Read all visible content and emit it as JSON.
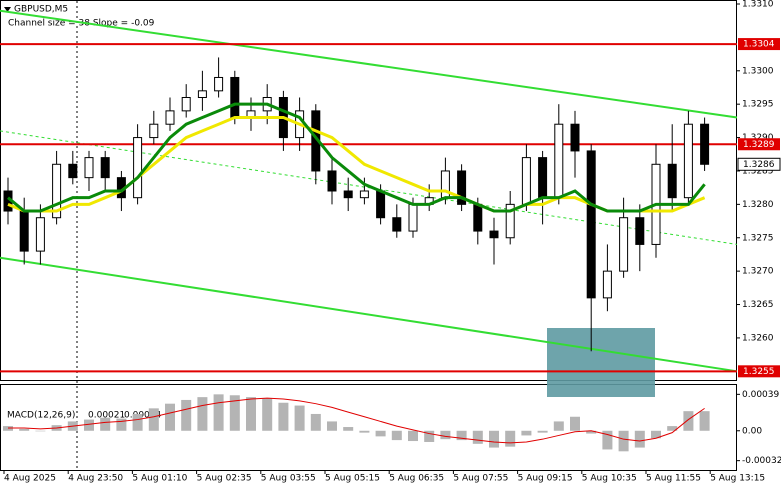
{
  "chart_data": [
    {
      "type": "candlestick",
      "title": "GBPUSD,M5",
      "subtitle": "Channel size = 38 Slope = -0.09",
      "open": [
        1.3282,
        1.3279,
        1.3273,
        1.3278,
        1.3286,
        1.3284,
        1.3287,
        1.3284,
        1.3281,
        1.329,
        1.3292,
        1.3294,
        1.3296,
        1.3297,
        1.3299,
        1.3293,
        1.3294,
        1.3296,
        1.329,
        1.3294,
        1.3285,
        1.3282,
        1.3281,
        1.3282,
        1.3278,
        1.3276,
        1.328,
        1.3281,
        1.3285,
        1.328,
        1.3276,
        1.3275,
        1.328,
        1.3287,
        1.3281,
        1.3292,
        1.3288,
        1.3266,
        1.327,
        1.3278,
        1.3274,
        1.3286,
        1.3281,
        1.3292
      ],
      "high": [
        1.3284,
        1.3281,
        1.328,
        1.3288,
        1.3288,
        1.3288,
        1.3288,
        1.3285,
        1.3292,
        1.3294,
        1.3296,
        1.3298,
        1.33,
        1.3302,
        1.33,
        1.3296,
        1.3298,
        1.3297,
        1.3296,
        1.3295,
        1.3287,
        1.3284,
        1.3284,
        1.3283,
        1.328,
        1.3281,
        1.3283,
        1.3287,
        1.3286,
        1.3281,
        1.3278,
        1.3282,
        1.3289,
        1.3288,
        1.3295,
        1.3294,
        1.3289,
        1.3274,
        1.3281,
        1.328,
        1.3289,
        1.3292,
        1.3294,
        1.3293
      ],
      "low": [
        1.3277,
        1.3271,
        1.3271,
        1.3277,
        1.3283,
        1.3282,
        1.3282,
        1.3279,
        1.328,
        1.3289,
        1.3291,
        1.3293,
        1.3294,
        1.3296,
        1.3292,
        1.3291,
        1.3292,
        1.3288,
        1.3288,
        1.3283,
        1.328,
        1.3279,
        1.328,
        1.3277,
        1.3275,
        1.3275,
        1.3279,
        1.328,
        1.3279,
        1.3274,
        1.3271,
        1.3274,
        1.3279,
        1.3277,
        1.328,
        1.3284,
        1.3258,
        1.3264,
        1.3269,
        1.327,
        1.3272,
        1.3279,
        1.328,
        1.3285
      ],
      "close": [
        1.3279,
        1.3273,
        1.3278,
        1.3286,
        1.3284,
        1.3287,
        1.3284,
        1.3281,
        1.329,
        1.3292,
        1.3294,
        1.3296,
        1.3297,
        1.3299,
        1.3293,
        1.3294,
        1.3296,
        1.329,
        1.3294,
        1.3285,
        1.3282,
        1.3281,
        1.3282,
        1.3278,
        1.3276,
        1.328,
        1.3281,
        1.3285,
        1.328,
        1.3276,
        1.3275,
        1.328,
        1.3287,
        1.3281,
        1.3292,
        1.3288,
        1.3266,
        1.327,
        1.3278,
        1.3274,
        1.3286,
        1.3281,
        1.3292,
        1.3286
      ],
      "series": [
        {
          "color": "#f0e800",
          "values": [
            1.328,
            1.3279,
            1.3279,
            1.3279,
            1.328,
            1.328,
            1.3281,
            1.3282,
            1.3284,
            1.3286,
            1.3288,
            1.329,
            1.3291,
            1.3292,
            1.3293,
            1.3293,
            1.3293,
            1.3293,
            1.3292,
            1.3291,
            1.329,
            1.3288,
            1.3286,
            1.3285,
            1.3284,
            1.3283,
            1.3282,
            1.3282,
            1.3281,
            1.328,
            1.3279,
            1.3279,
            1.328,
            1.328,
            1.3281,
            1.3281,
            1.328,
            1.3279,
            1.3279,
            1.3279,
            1.3279,
            1.3279,
            1.328,
            1.3281
          ]
        },
        {
          "color": "#0a8a0a",
          "values": [
            1.3281,
            1.3279,
            1.3279,
            1.328,
            1.3281,
            1.3281,
            1.3282,
            1.3282,
            1.3284,
            1.3287,
            1.329,
            1.3292,
            1.3293,
            1.3294,
            1.3295,
            1.3295,
            1.3295,
            1.3294,
            1.3293,
            1.329,
            1.3287,
            1.3285,
            1.3283,
            1.3282,
            1.3281,
            1.328,
            1.328,
            1.3281,
            1.3281,
            1.328,
            1.3279,
            1.3279,
            1.328,
            1.3281,
            1.3281,
            1.3282,
            1.328,
            1.3279,
            1.3279,
            1.3279,
            1.328,
            1.328,
            1.328,
            1.3283
          ]
        }
      ],
      "channel": {
        "color": "#33dd33",
        "upper": [
          1.3309,
          1.3293
        ],
        "middle": [
          1.3291,
          1.3274
        ],
        "lower": [
          1.3272,
          1.3255
        ]
      },
      "levels": [
        1.3304,
        1.3289,
        1.3255
      ],
      "level_color": "#e00000",
      "ylim": [
        1.32537,
        1.33106
      ],
      "yticks": [
        {
          "value": 1.331,
          "label": "1.3310"
        },
        {
          "value": 1.33,
          "label": "1.3300"
        },
        1.3295,
        {
          "value": 1.329,
          "label": "1.3290"
        },
        1.3285,
        {
          "value": 1.328,
          "label": "1.3280"
        },
        1.3275,
        {
          "value": 1.327,
          "label": "1.3270"
        },
        1.3265,
        {
          "value": 1.326,
          "label": "1.3260"
        }
      ],
      "xtick_labels": [
        "4 Aug 2025",
        "4 Aug 23:50",
        "5 Aug 01:10",
        "5 Aug 02:35",
        "5 Aug 03:55",
        "5 Aug 05:15",
        "5 Aug 06:35",
        "5 Aug 07:55",
        "5 Aug 09:15",
        "5 Aug 10:35",
        "5 Aug 11:55",
        "5 Aug 13:15"
      ]
    },
    {
      "type": "macd",
      "title": "MACD(12,26,9)",
      "series": [
        {
          "color": "#b4b4b4",
          "values": [
            5e-05,
            2e-05,
            0.0,
            6e-05,
            0.0001,
            0.00012,
            0.00014,
            0.00013,
            0.00018,
            0.00024,
            0.00029,
            0.00033,
            0.00036,
            0.00039,
            0.00038,
            0.00036,
            0.00035,
            0.0003,
            0.00027,
            0.00018,
            0.0001,
            4e-05,
            -2e-05,
            -6e-05,
            -0.0001,
            -0.00011,
            -0.00012,
            -9e-05,
            -0.0001,
            -0.00014,
            -0.00018,
            -0.00017,
            -5e-05,
            -2e-05,
            0.0001,
            0.00015,
            -3e-05,
            -0.0002,
            -0.00022,
            -0.00018,
            -8e-05,
            5e-05,
            0.00021,
            0.00021
          ]
        },
        {
          "color": "#e00000",
          "values": [
            3e-05,
            3e-05,
            2e-05,
            3e-05,
            5e-05,
            7e-05,
            9e-05,
            0.0001,
            0.00012,
            0.00015,
            0.00019,
            0.00023,
            0.00027,
            0.0003,
            0.00032,
            0.00034,
            0.00035,
            0.00034,
            0.00032,
            0.00029,
            0.00025,
            0.0002,
            0.00015,
            0.0001,
            5e-05,
            1e-05,
            -3e-05,
            -6e-05,
            -8e-05,
            -0.0001,
            -0.00012,
            -0.00013,
            -0.00012,
            -9e-05,
            -5e-05,
            -1e-05,
            0.0,
            -4e-05,
            -9e-05,
            -0.00011,
            -8e-05,
            -2e-05,
            0.00012,
            0.00024
          ]
        }
      ],
      "ylim": [
        -0.00042,
        0.00049
      ],
      "yticks": [
        0.00039,
        {
          "value": 0,
          "label": "0.00"
        },
        -0.00032
      ]
    }
  ]
}
